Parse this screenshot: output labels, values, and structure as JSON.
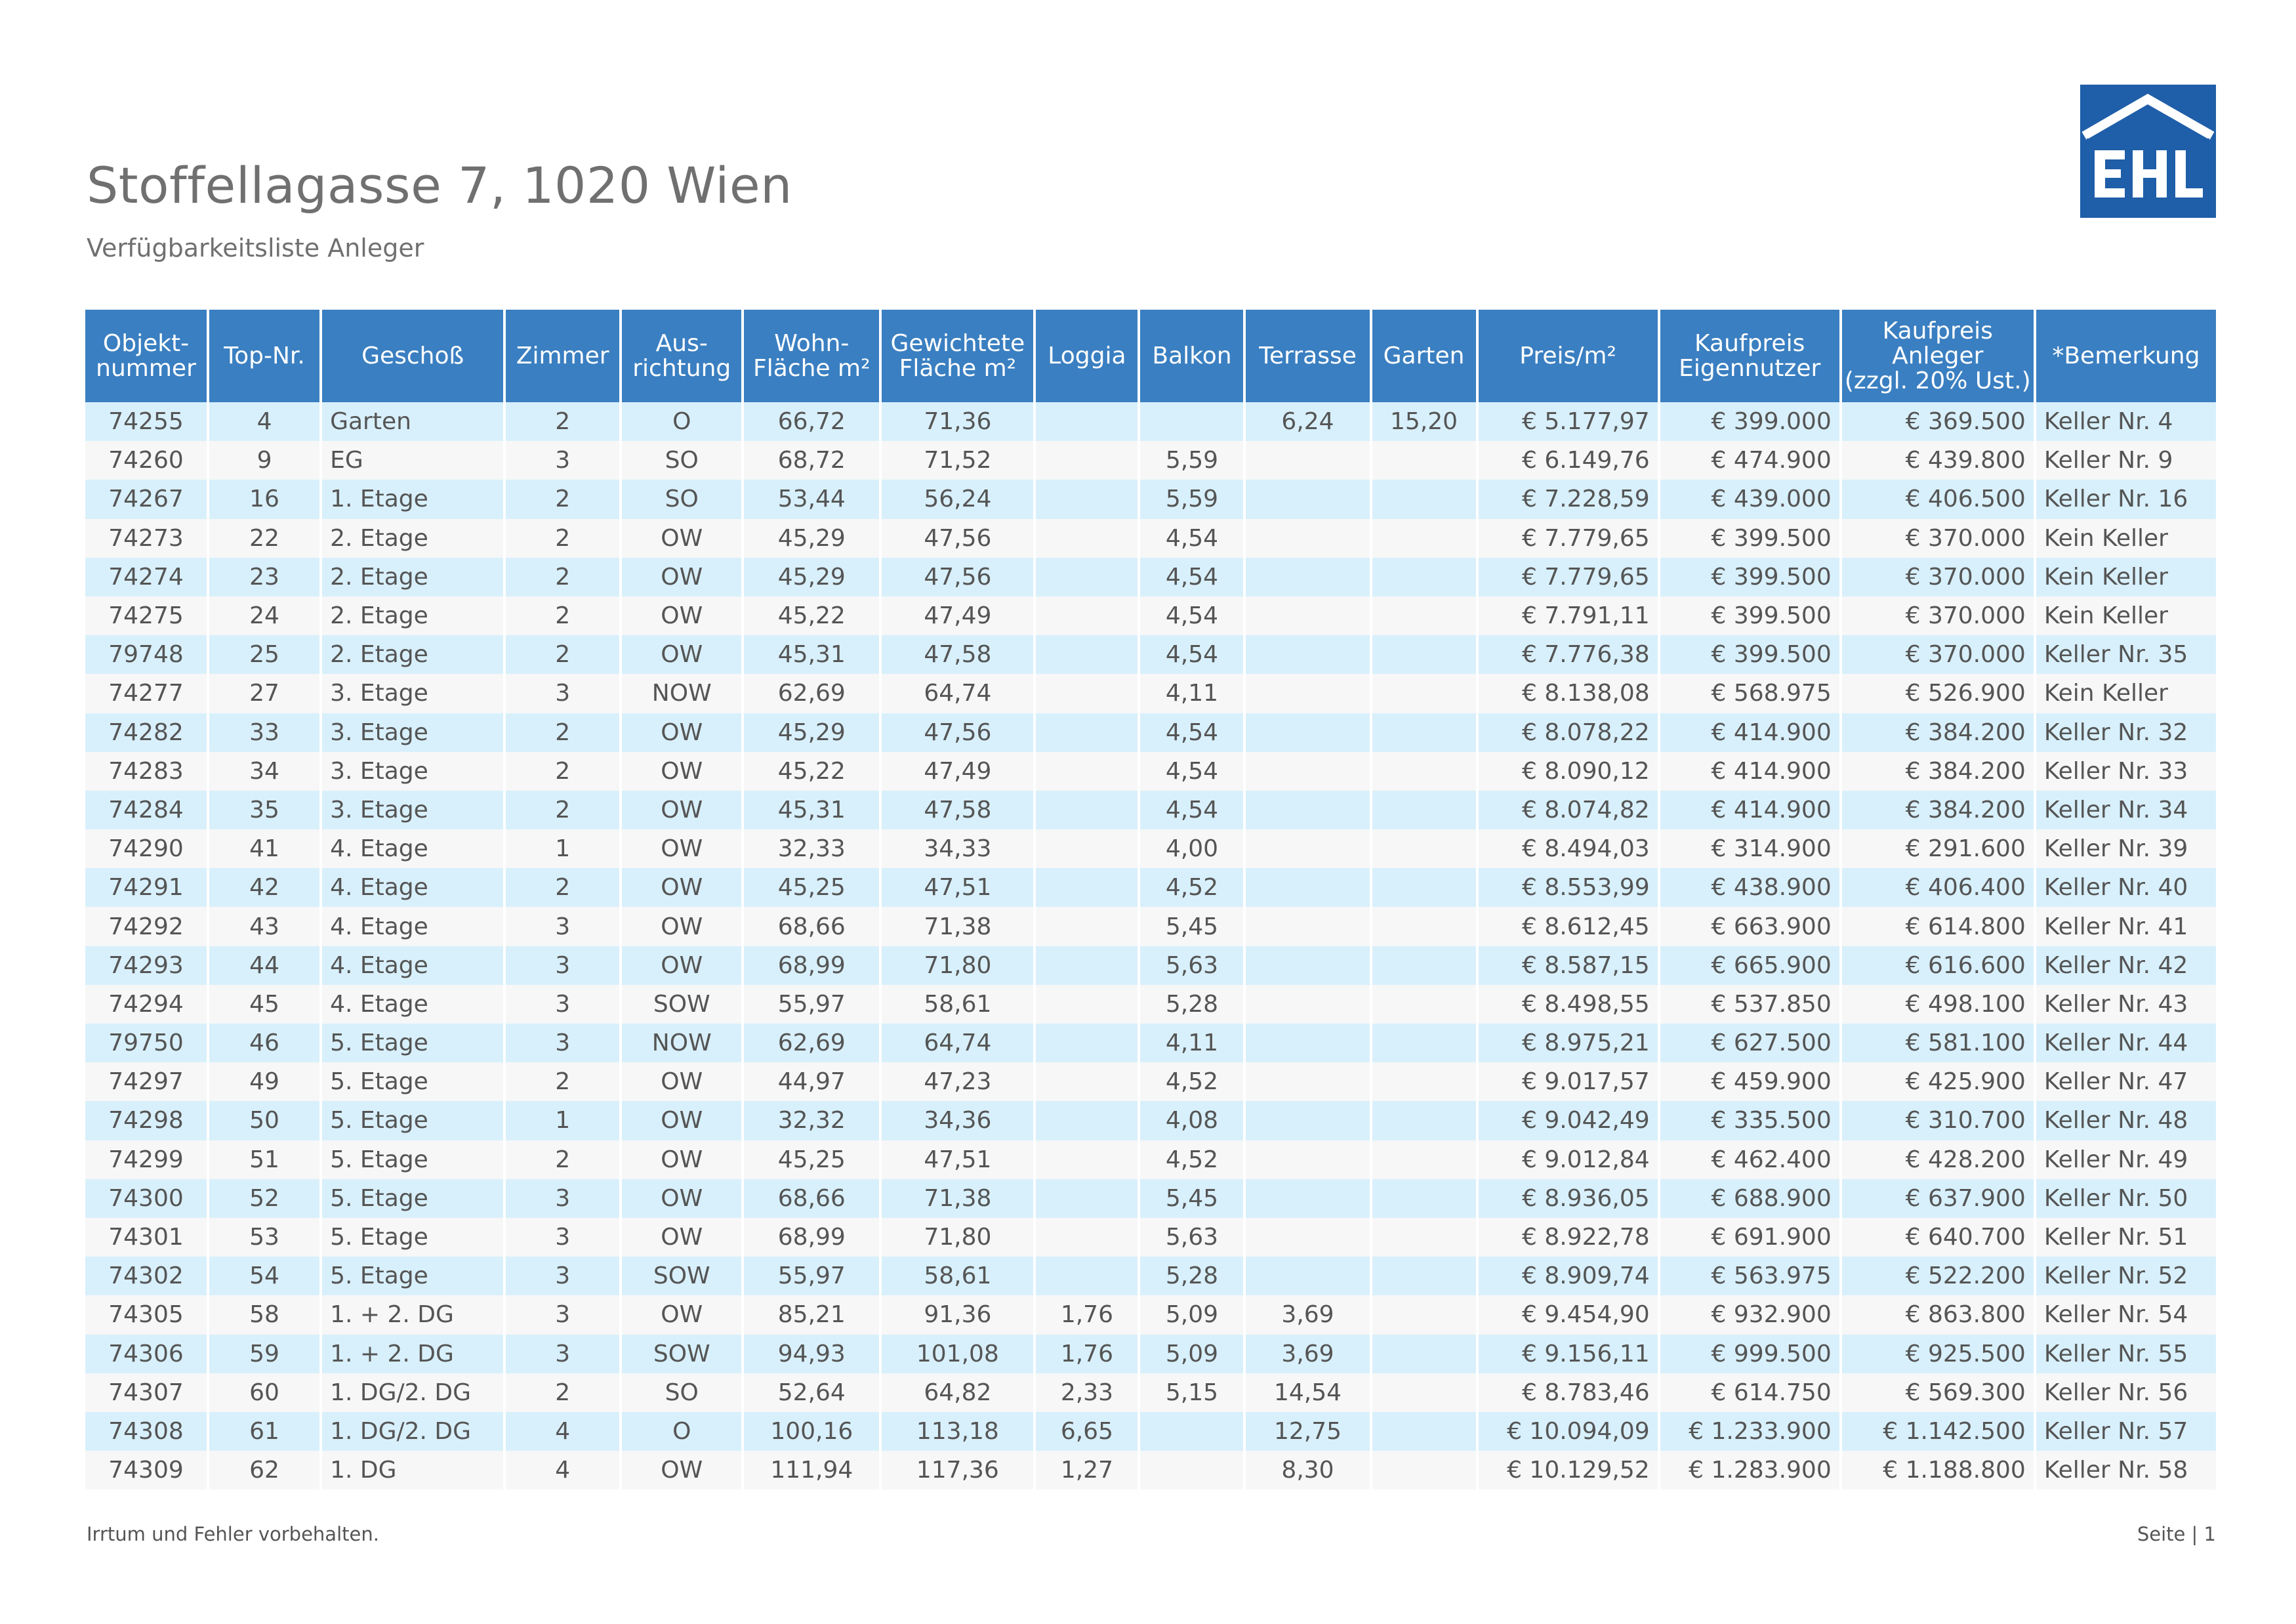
{
  "header": {
    "title": "Stoffellagasse 7, 1020 Wien",
    "subtitle": "Verfügbarkeitsliste Anleger",
    "logo_text": "EHL"
  },
  "colors": {
    "header_bg": "#3a7fc1",
    "row_odd": "#d8f0fb",
    "row_even": "#f7f7f7",
    "logo_blue": "#1f5ea8"
  },
  "table": {
    "columns": [
      {
        "label": "Objekt-\nnummer",
        "align": "c"
      },
      {
        "label": "Top-Nr.",
        "align": "c"
      },
      {
        "label": "Geschoß",
        "align": "l"
      },
      {
        "label": "Zimmer",
        "align": "c"
      },
      {
        "label": "Aus-\nrichtung",
        "align": "c"
      },
      {
        "label": "Wohn-\nFläche m²",
        "align": "c"
      },
      {
        "label": "Gewichtete\nFläche m²",
        "align": "c"
      },
      {
        "label": "Loggia",
        "align": "c"
      },
      {
        "label": "Balkon",
        "align": "c"
      },
      {
        "label": "Terrasse",
        "align": "c"
      },
      {
        "label": "Garten",
        "align": "c"
      },
      {
        "label": "Preis/m²",
        "align": "r"
      },
      {
        "label": "Kaufpreis\nEigennutzer",
        "align": "r"
      },
      {
        "label": "Kaufpreis\nAnleger\n(zzgl. 20% Ust.)",
        "align": "r"
      },
      {
        "label": "*Bemerkung",
        "align": "l"
      }
    ],
    "rows": [
      [
        "74255",
        "4",
        "Garten",
        "2",
        "O",
        "66,72",
        "71,36",
        "",
        "",
        "6,24",
        "15,20",
        "€ 5.177,97",
        "€ 399.000",
        "€ 369.500",
        "Keller Nr. 4"
      ],
      [
        "74260",
        "9",
        "EG",
        "3",
        "SO",
        "68,72",
        "71,52",
        "",
        "5,59",
        "",
        "",
        "€ 6.149,76",
        "€ 474.900",
        "€ 439.800",
        "Keller Nr. 9"
      ],
      [
        "74267",
        "16",
        "1. Etage",
        "2",
        "SO",
        "53,44",
        "56,24",
        "",
        "5,59",
        "",
        "",
        "€ 7.228,59",
        "€ 439.000",
        "€ 406.500",
        "Keller Nr. 16"
      ],
      [
        "74273",
        "22",
        "2. Etage",
        "2",
        "OW",
        "45,29",
        "47,56",
        "",
        "4,54",
        "",
        "",
        "€ 7.779,65",
        "€ 399.500",
        "€ 370.000",
        "Kein Keller"
      ],
      [
        "74274",
        "23",
        "2. Etage",
        "2",
        "OW",
        "45,29",
        "47,56",
        "",
        "4,54",
        "",
        "",
        "€ 7.779,65",
        "€ 399.500",
        "€ 370.000",
        "Kein Keller"
      ],
      [
        "74275",
        "24",
        "2. Etage",
        "2",
        "OW",
        "45,22",
        "47,49",
        "",
        "4,54",
        "",
        "",
        "€ 7.791,11",
        "€ 399.500",
        "€ 370.000",
        "Kein Keller"
      ],
      [
        "79748",
        "25",
        "2. Etage",
        "2",
        "OW",
        "45,31",
        "47,58",
        "",
        "4,54",
        "",
        "",
        "€ 7.776,38",
        "€ 399.500",
        "€ 370.000",
        "Keller Nr. 35"
      ],
      [
        "74277",
        "27",
        "3. Etage",
        "3",
        "NOW",
        "62,69",
        "64,74",
        "",
        "4,11",
        "",
        "",
        "€ 8.138,08",
        "€ 568.975",
        "€ 526.900",
        "Kein Keller"
      ],
      [
        "74282",
        "33",
        "3. Etage",
        "2",
        "OW",
        "45,29",
        "47,56",
        "",
        "4,54",
        "",
        "",
        "€ 8.078,22",
        "€ 414.900",
        "€ 384.200",
        "Keller Nr. 32"
      ],
      [
        "74283",
        "34",
        "3. Etage",
        "2",
        "OW",
        "45,22",
        "47,49",
        "",
        "4,54",
        "",
        "",
        "€ 8.090,12",
        "€ 414.900",
        "€ 384.200",
        "Keller Nr. 33"
      ],
      [
        "74284",
        "35",
        "3. Etage",
        "2",
        "OW",
        "45,31",
        "47,58",
        "",
        "4,54",
        "",
        "",
        "€ 8.074,82",
        "€ 414.900",
        "€ 384.200",
        "Keller Nr. 34"
      ],
      [
        "74290",
        "41",
        "4. Etage",
        "1",
        "OW",
        "32,33",
        "34,33",
        "",
        "4,00",
        "",
        "",
        "€ 8.494,03",
        "€ 314.900",
        "€ 291.600",
        "Keller Nr. 39"
      ],
      [
        "74291",
        "42",
        "4. Etage",
        "2",
        "OW",
        "45,25",
        "47,51",
        "",
        "4,52",
        "",
        "",
        "€ 8.553,99",
        "€ 438.900",
        "€ 406.400",
        "Keller Nr. 40"
      ],
      [
        "74292",
        "43",
        "4. Etage",
        "3",
        "OW",
        "68,66",
        "71,38",
        "",
        "5,45",
        "",
        "",
        "€ 8.612,45",
        "€ 663.900",
        "€ 614.800",
        "Keller Nr. 41"
      ],
      [
        "74293",
        "44",
        "4. Etage",
        "3",
        "OW",
        "68,99",
        "71,80",
        "",
        "5,63",
        "",
        "",
        "€ 8.587,15",
        "€ 665.900",
        "€ 616.600",
        "Keller Nr. 42"
      ],
      [
        "74294",
        "45",
        "4. Etage",
        "3",
        "SOW",
        "55,97",
        "58,61",
        "",
        "5,28",
        "",
        "",
        "€ 8.498,55",
        "€ 537.850",
        "€ 498.100",
        "Keller Nr. 43"
      ],
      [
        "79750",
        "46",
        "5. Etage",
        "3",
        "NOW",
        "62,69",
        "64,74",
        "",
        "4,11",
        "",
        "",
        "€ 8.975,21",
        "€ 627.500",
        "€ 581.100",
        "Keller Nr. 44"
      ],
      [
        "74297",
        "49",
        "5. Etage",
        "2",
        "OW",
        "44,97",
        "47,23",
        "",
        "4,52",
        "",
        "",
        "€ 9.017,57",
        "€ 459.900",
        "€ 425.900",
        "Keller Nr. 47"
      ],
      [
        "74298",
        "50",
        "5. Etage",
        "1",
        "OW",
        "32,32",
        "34,36",
        "",
        "4,08",
        "",
        "",
        "€ 9.042,49",
        "€ 335.500",
        "€ 310.700",
        "Keller Nr. 48"
      ],
      [
        "74299",
        "51",
        "5. Etage",
        "2",
        "OW",
        "45,25",
        "47,51",
        "",
        "4,52",
        "",
        "",
        "€ 9.012,84",
        "€ 462.400",
        "€ 428.200",
        "Keller Nr. 49"
      ],
      [
        "74300",
        "52",
        "5. Etage",
        "3",
        "OW",
        "68,66",
        "71,38",
        "",
        "5,45",
        "",
        "",
        "€ 8.936,05",
        "€ 688.900",
        "€ 637.900",
        "Keller Nr. 50"
      ],
      [
        "74301",
        "53",
        "5. Etage",
        "3",
        "OW",
        "68,99",
        "71,80",
        "",
        "5,63",
        "",
        "",
        "€ 8.922,78",
        "€ 691.900",
        "€ 640.700",
        "Keller Nr. 51"
      ],
      [
        "74302",
        "54",
        "5. Etage",
        "3",
        "SOW",
        "55,97",
        "58,61",
        "",
        "5,28",
        "",
        "",
        "€ 8.909,74",
        "€ 563.975",
        "€ 522.200",
        "Keller Nr. 52"
      ],
      [
        "74305",
        "58",
        "1. + 2. DG",
        "3",
        "OW",
        "85,21",
        "91,36",
        "1,76",
        "5,09",
        "3,69",
        "",
        "€ 9.454,90",
        "€ 932.900",
        "€ 863.800",
        "Keller Nr. 54"
      ],
      [
        "74306",
        "59",
        "1. + 2. DG",
        "3",
        "SOW",
        "94,93",
        "101,08",
        "1,76",
        "5,09",
        "3,69",
        "",
        "€ 9.156,11",
        "€ 999.500",
        "€ 925.500",
        "Keller Nr. 55"
      ],
      [
        "74307",
        "60",
        "1. DG/2. DG",
        "2",
        "SO",
        "52,64",
        "64,82",
        "2,33",
        "5,15",
        "14,54",
        "",
        "€ 8.783,46",
        "€ 614.750",
        "€ 569.300",
        "Keller Nr. 56"
      ],
      [
        "74308",
        "61",
        "1. DG/2. DG",
        "4",
        "O",
        "100,16",
        "113,18",
        "6,65",
        "",
        "12,75",
        "",
        "€ 10.094,09",
        "€ 1.233.900",
        "€ 1.142.500",
        "Keller Nr. 57"
      ],
      [
        "74309",
        "62",
        "1. DG",
        "4",
        "OW",
        "111,94",
        "117,36",
        "1,27",
        "",
        "8,30",
        "",
        "€ 10.129,52",
        "€ 1.283.900",
        "€ 1.188.800",
        "Keller Nr. 58"
      ]
    ]
  },
  "footer": {
    "disclaimer": "Irrtum und Fehler vorbehalten.",
    "page": "Seite | 1"
  }
}
